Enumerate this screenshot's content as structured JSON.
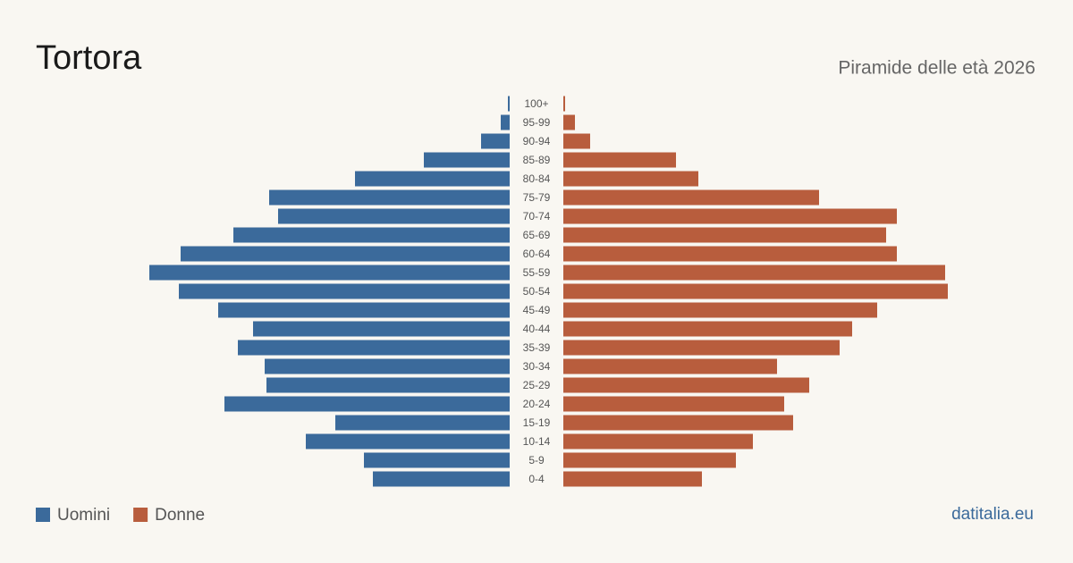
{
  "chart_data": {
    "type": "pyramid",
    "title": "Tortora",
    "subtitle": "Piramide delle età 2026",
    "source": "datitalia.eu",
    "categories": [
      "100+",
      "95-99",
      "90-94",
      "85-89",
      "80-84",
      "75-79",
      "70-74",
      "65-69",
      "60-64",
      "55-59",
      "50-54",
      "45-49",
      "40-44",
      "35-39",
      "30-34",
      "25-29",
      "20-24",
      "15-19",
      "10-14",
      "5-9",
      "0-4"
    ],
    "series": [
      {
        "name": "Uomini",
        "color": "#3b6a9b",
        "values": [
          2,
          10,
          32,
          96,
          173,
          269,
          259,
          309,
          368,
          403,
          370,
          326,
          287,
          304,
          274,
          272,
          319,
          195,
          228,
          163,
          153
        ]
      },
      {
        "name": "Donne",
        "color": "#b85d3d",
        "values": [
          2,
          13,
          30,
          126,
          151,
          286,
          373,
          361,
          373,
          427,
          430,
          351,
          323,
          309,
          239,
          275,
          247,
          257,
          212,
          193,
          155
        ]
      }
    ]
  }
}
